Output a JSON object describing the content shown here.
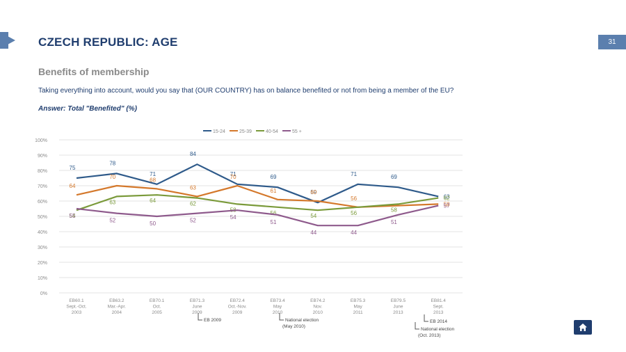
{
  "header": {
    "title": "CZECH REPUBLIC: AGE",
    "page_number": "31"
  },
  "subtitle": "Benefits of membership",
  "question": "Taking everything into account, would you say that (OUR COUNTRY) has on balance benefited or not from being a member of the EU?",
  "answer": "Answer: Total \"Benefited\" (%)",
  "colors": {
    "brand": "#1f3d6e",
    "accent": "#5b7fae"
  },
  "icons": {
    "home": "home-icon"
  },
  "chart_data": {
    "type": "line",
    "title": "",
    "xlabel": "",
    "ylabel": "",
    "ylim": [
      0,
      100
    ],
    "yticks": [
      "0%",
      "10%",
      "20%",
      "30%",
      "40%",
      "50%",
      "60%",
      "70%",
      "80%",
      "90%",
      "100%"
    ],
    "grid": true,
    "legend_position": "top",
    "categories": [
      [
        "EB60.1",
        "Sept.-Oct.",
        "2003"
      ],
      [
        "EB63.2",
        "Mar.-Apr.",
        "2004"
      ],
      [
        "EB70.1",
        "Oct.",
        "2005"
      ],
      [
        "EB71.3",
        "June",
        "2009"
      ],
      [
        "EB72.4",
        "Oct.-Nov.",
        "2009"
      ],
      [
        "EB73.4",
        "May",
        "2010"
      ],
      [
        "EB74.2",
        "Nov.",
        "2010"
      ],
      [
        "EB75.3",
        "May",
        "2011"
      ],
      [
        "EB79.5",
        "June",
        "2013"
      ],
      [
        "EB81.4",
        "Sept.",
        "2013"
      ]
    ],
    "series": [
      {
        "name": "15-24",
        "color": "#2e5a8a",
        "values": [
          75,
          78,
          71,
          84,
          71,
          69,
          59,
          71,
          69,
          63
        ]
      },
      {
        "name": "25-39",
        "color": "#d4782b",
        "values": [
          64,
          70,
          68,
          63,
          70,
          61,
          60,
          56,
          null,
          58
        ]
      },
      {
        "name": "40-54",
        "color": "#7a9a3a",
        "values": [
          54,
          63,
          64,
          62,
          58,
          56,
          54,
          56,
          58,
          62
        ]
      },
      {
        "name": "55 +",
        "color": "#8e5a8c",
        "values": [
          55,
          52,
          50,
          52,
          54,
          51,
          44,
          44,
          51,
          57
        ]
      }
    ],
    "annotations": [
      {
        "text": "EB 2009",
        "after_category": 3
      },
      {
        "text": "National election (May 2010)",
        "after_category": 5
      },
      {
        "text": "National election (Oct. 2013)",
        "after_category": 8
      },
      {
        "text": "EB 2014",
        "after_category": 8
      }
    ]
  }
}
